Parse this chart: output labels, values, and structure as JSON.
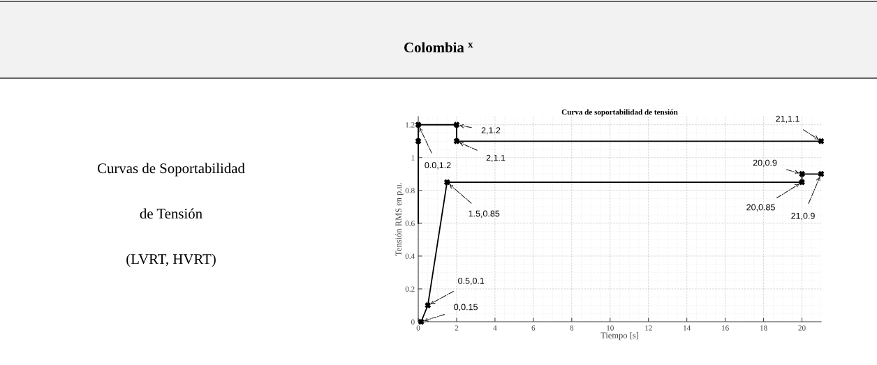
{
  "chart_data": {
    "type": "line",
    "title": "Curva de soportabilidad de tensión",
    "xlabel": "Tiempo [s]",
    "ylabel": "Tensión RMS en p.u.",
    "xlim": [
      0,
      21
    ],
    "xticks": [
      0,
      2,
      4,
      6,
      8,
      10,
      12,
      14,
      16,
      18,
      20
    ],
    "ylim": [
      0,
      1.25
    ],
    "yticks": [
      0,
      0.2,
      0.4,
      0.6,
      0.8,
      1,
      1.2
    ],
    "grid": true,
    "line_style": "solid",
    "series": [
      {
        "color": "#000000",
        "x": [
          0,
          0
        ],
        "values": [
          0.6,
          1.1
        ]
      },
      {
        "color": "#000000",
        "marker": "cross",
        "x": [
          0,
          0,
          2,
          2,
          21
        ],
        "values": [
          1.1,
          1.2,
          1.2,
          1.1,
          1.1
        ]
      },
      {
        "color": "#000000",
        "marker": "cross",
        "x": [
          0.15,
          0.5,
          1.5,
          20,
          20,
          21
        ],
        "values": [
          0,
          0.1,
          0.85,
          0.85,
          0.9,
          0.9
        ]
      }
    ],
    "annotations": [
      "Colombia $^{x}$",
      "Curvas de Soportabilidad",
      "de Tensión",
      "(LVRT, HVRT)",
      {
        "text": "0.0,1.2",
        "x": 0,
        "y": 1.2
      },
      {
        "text": "2,1.2",
        "x": 2,
        "y": 1.2
      },
      {
        "text": "2,1.1",
        "x": 2,
        "y": 1.1
      },
      {
        "text": "1.5,0.85",
        "x": 1.5,
        "y": 0.85
      },
      {
        "text": "0.5,0.1",
        "x": 0.5,
        "y": 0.1
      },
      {
        "text": "0,0.15",
        "x": 0.15,
        "y": 0
      },
      {
        "text": "21,1.1",
        "x": 21,
        "y": 1.1
      },
      {
        "text": "20,0.9",
        "x": 20,
        "y": 0.9
      },
      {
        "text": "20,0.85",
        "x": 20,
        "y": 0.85
      },
      {
        "text": "21,0.9",
        "x": 21,
        "y": 0.9
      }
    ]
  }
}
